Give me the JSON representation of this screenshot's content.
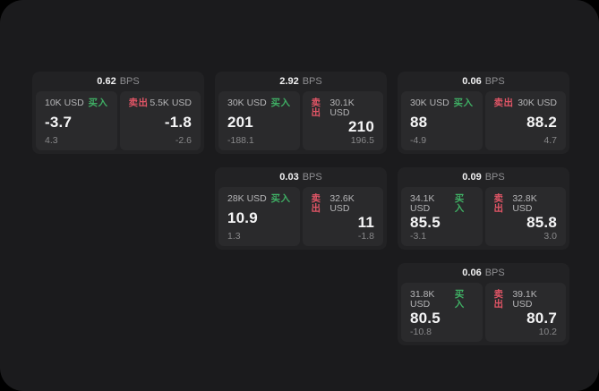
{
  "app": {
    "background_color": "#1b1b1d",
    "card_color": "#222224",
    "panel_color": "#2a2a2c",
    "buy_color": "#3fae64",
    "sell_color": "#e15566"
  },
  "labels": {
    "bps_unit": "BPS",
    "buy": "买入",
    "sell": "卖出"
  },
  "cards": [
    {
      "bps": "0.62",
      "buy": {
        "amount": "10K USD",
        "price": "-3.7",
        "delta": "4.3"
      },
      "sell": {
        "amount": "5.5K USD",
        "price": "-1.8",
        "delta": "-2.6"
      }
    },
    {
      "bps": "2.92",
      "buy": {
        "amount": "30K USD",
        "price": "201",
        "delta": "-188.1"
      },
      "sell": {
        "amount": "30.1K USD",
        "price": "210",
        "delta": "196.5"
      }
    },
    {
      "bps": "0.06",
      "buy": {
        "amount": "30K USD",
        "price": "88",
        "delta": "-4.9"
      },
      "sell": {
        "amount": "30K USD",
        "price": "88.2",
        "delta": "4.7"
      }
    },
    {
      "bps": "0.03",
      "buy": {
        "amount": "28K USD",
        "price": "10.9",
        "delta": "1.3"
      },
      "sell": {
        "amount": "32.6K USD",
        "price": "11",
        "delta": "-1.8"
      }
    },
    {
      "bps": "0.09",
      "buy": {
        "amount": "34.1K USD",
        "price": "85.5",
        "delta": "-3.1"
      },
      "sell": {
        "amount": "32.8K USD",
        "price": "85.8",
        "delta": "3.0"
      }
    },
    {
      "bps": "0.06",
      "buy": {
        "amount": "31.8K USD",
        "price": "80.5",
        "delta": "-10.8"
      },
      "sell": {
        "amount": "39.1K USD",
        "price": "80.7",
        "delta": "10.2"
      }
    }
  ]
}
